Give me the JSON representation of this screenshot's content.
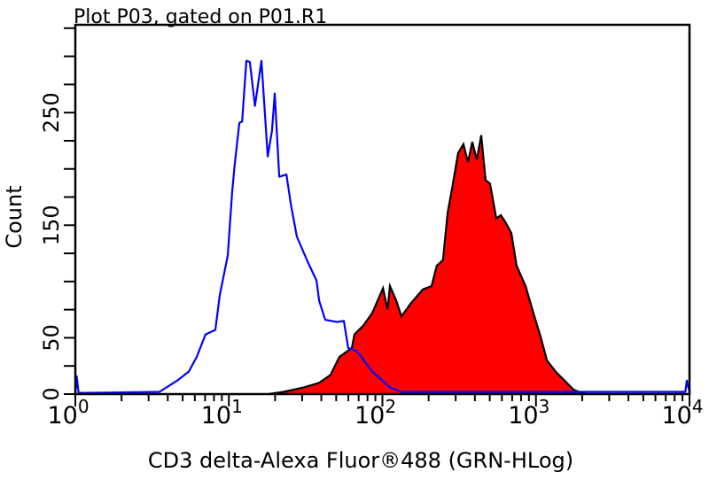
{
  "chart_data": {
    "type": "area",
    "title": "Plot P03, gated on P01.R1",
    "xlabel": "CD3 delta-Alexa Fluor®488 (GRN-HLog)",
    "ylabel": "Count",
    "xscale": "log",
    "xlim": [
      1,
      10000
    ],
    "ylim": [
      0,
      328
    ],
    "x_tick_labels": [
      {
        "base": "10",
        "exp": "0",
        "value": 1
      },
      {
        "base": "10",
        "exp": "1",
        "value": 10
      },
      {
        "base": "10",
        "exp": "2",
        "value": 100
      },
      {
        "base": "10",
        "exp": "3",
        "value": 1000
      },
      {
        "base": "10",
        "exp": "4",
        "value": 10000
      }
    ],
    "y_tick_labels": [
      "0",
      "50",
      "150",
      "250"
    ],
    "y_tick_values": [
      0,
      50,
      150,
      250
    ],
    "y_minor_step": 25,
    "grid": false,
    "series": [
      {
        "style": "outline",
        "color": "#0000ff",
        "points": [
          [
            1,
            0
          ],
          [
            1.02,
            16
          ],
          [
            1.05,
            1
          ],
          [
            3.53,
            2
          ],
          [
            4.61,
            12
          ],
          [
            5.48,
            20
          ],
          [
            6.18,
            33
          ],
          [
            7.05,
            53
          ],
          [
            8.17,
            57
          ],
          [
            8.73,
            88
          ],
          [
            9.84,
            123
          ],
          [
            10.5,
            179
          ],
          [
            10.9,
            203
          ],
          [
            11.7,
            241
          ],
          [
            12.2,
            242
          ],
          [
            13.0,
            296
          ],
          [
            13.7,
            295
          ],
          [
            14.8,
            256
          ],
          [
            16.3,
            296
          ],
          [
            17.9,
            211
          ],
          [
            19.1,
            234
          ],
          [
            19.9,
            267
          ],
          [
            21.3,
            193
          ],
          [
            23.7,
            195
          ],
          [
            25.3,
            169
          ],
          [
            27.7,
            140
          ],
          [
            32.5,
            118
          ],
          [
            37.2,
            101
          ],
          [
            38.7,
            83
          ],
          [
            42.4,
            66
          ],
          [
            50.4,
            64
          ],
          [
            56.1,
            65
          ],
          [
            59.9,
            41
          ],
          [
            68.4,
            38
          ],
          [
            85.8,
            20
          ],
          [
            112,
            6
          ],
          [
            133,
            2
          ],
          [
            324,
            2
          ],
          [
            1000,
            2
          ],
          [
            3548,
            2
          ],
          [
            9400,
            2
          ],
          [
            9610,
            12
          ],
          [
            10000,
            2
          ]
        ]
      },
      {
        "style": "filled",
        "color": "#ff0000",
        "outline_color": "#000000",
        "points": [
          [
            18,
            0
          ],
          [
            22.7,
            2
          ],
          [
            30.8,
            6
          ],
          [
            38.7,
            10
          ],
          [
            45.9,
            17
          ],
          [
            52.5,
            33
          ],
          [
            63.2,
            41
          ],
          [
            65.8,
            53
          ],
          [
            75.2,
            61
          ],
          [
            85.8,
            72
          ],
          [
            101,
            94
          ],
          [
            108,
            75
          ],
          [
            112,
            96
          ],
          [
            123,
            83
          ],
          [
            133,
            69
          ],
          [
            152,
            80
          ],
          [
            183,
            93
          ],
          [
            209,
            96
          ],
          [
            226,
            114
          ],
          [
            248,
            119
          ],
          [
            266,
            161
          ],
          [
            284,
            182
          ],
          [
            311,
            214
          ],
          [
            337,
            222
          ],
          [
            361,
            206
          ],
          [
            385,
            224
          ],
          [
            412,
            208
          ],
          [
            440,
            230
          ],
          [
            470,
            190
          ],
          [
            502,
            187
          ],
          [
            552,
            156
          ],
          [
            590,
            159
          ],
          [
            630,
            153
          ],
          [
            692,
            143
          ],
          [
            748,
            114
          ],
          [
            855,
            96
          ],
          [
            977,
            69
          ],
          [
            1072,
            51
          ],
          [
            1178,
            30
          ],
          [
            1343,
            20
          ],
          [
            1535,
            12
          ],
          [
            1753,
            4
          ],
          [
            1897,
            2
          ],
          [
            2100,
            0
          ]
        ]
      }
    ]
  }
}
